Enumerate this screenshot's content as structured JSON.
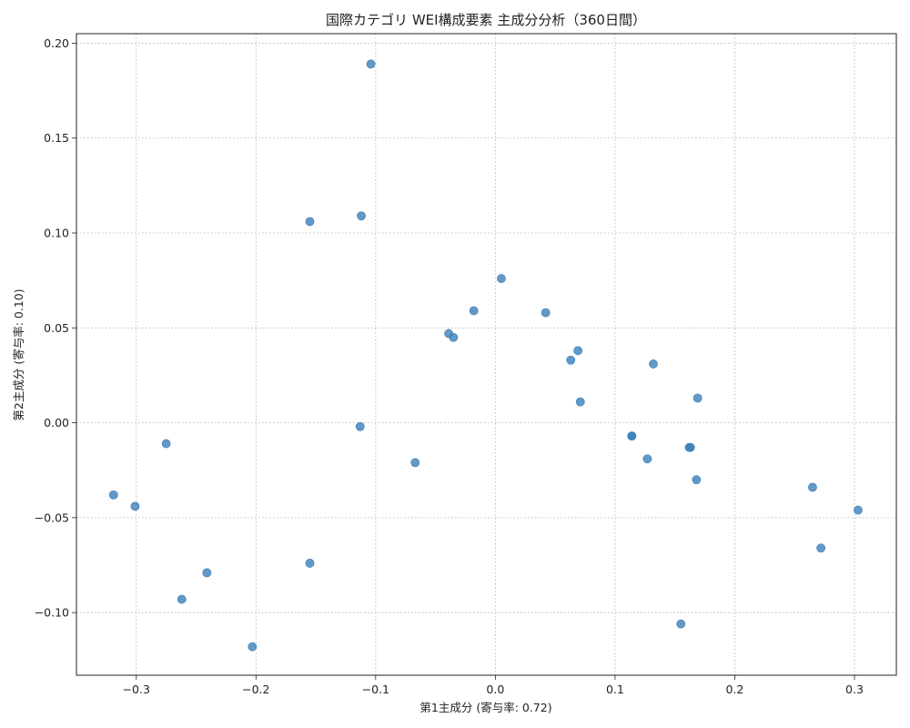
{
  "chart_data": {
    "type": "scatter",
    "title": "国際カテゴリ WEI構成要素 主成分分析（360日間）",
    "xlabel": "第1主成分 (寄与率: 0.72)",
    "ylabel": "第2主成分 (寄与率: 0.10)",
    "xlim": [
      -0.35,
      0.335
    ],
    "ylim": [
      -0.133,
      0.205
    ],
    "xticks": [
      -0.3,
      -0.2,
      -0.1,
      0.0,
      0.1,
      0.2,
      0.3
    ],
    "xtick_labels": [
      "−0.3",
      "−0.2",
      "−0.1",
      "0.0",
      "0.1",
      "0.2",
      "0.3"
    ],
    "yticks": [
      -0.1,
      -0.05,
      0.0,
      0.05,
      0.1,
      0.15,
      0.2
    ],
    "ytick_labels": [
      "−0.10",
      "−0.05",
      "0.00",
      "0.05",
      "0.10",
      "0.15",
      "0.20"
    ],
    "grid": true,
    "marker_color": "#3b7fb8",
    "points": [
      {
        "x": -0.104,
        "y": 0.189
      },
      {
        "x": -0.155,
        "y": 0.106
      },
      {
        "x": -0.112,
        "y": 0.109
      },
      {
        "x": 0.005,
        "y": 0.076
      },
      {
        "x": -0.018,
        "y": 0.059
      },
      {
        "x": 0.042,
        "y": 0.058
      },
      {
        "x": -0.039,
        "y": 0.047
      },
      {
        "x": -0.035,
        "y": 0.045
      },
      {
        "x": 0.069,
        "y": 0.038
      },
      {
        "x": 0.063,
        "y": 0.033
      },
      {
        "x": 0.132,
        "y": 0.031
      },
      {
        "x": 0.169,
        "y": 0.013
      },
      {
        "x": 0.071,
        "y": 0.011
      },
      {
        "x": -0.113,
        "y": -0.002
      },
      {
        "x": 0.114,
        "y": -0.007
      },
      {
        "x": 0.114,
        "y": -0.007
      },
      {
        "x": 0.162,
        "y": -0.013
      },
      {
        "x": 0.163,
        "y": -0.013
      },
      {
        "x": -0.275,
        "y": -0.011
      },
      {
        "x": 0.127,
        "y": -0.019
      },
      {
        "x": -0.067,
        "y": -0.021
      },
      {
        "x": 0.168,
        "y": -0.03
      },
      {
        "x": 0.265,
        "y": -0.034
      },
      {
        "x": -0.319,
        "y": -0.038
      },
      {
        "x": -0.301,
        "y": -0.044
      },
      {
        "x": 0.303,
        "y": -0.046
      },
      {
        "x": 0.272,
        "y": -0.066
      },
      {
        "x": -0.155,
        "y": -0.074
      },
      {
        "x": -0.241,
        "y": -0.079
      },
      {
        "x": -0.262,
        "y": -0.093
      },
      {
        "x": 0.155,
        "y": -0.106
      },
      {
        "x": -0.203,
        "y": -0.118
      }
    ]
  }
}
